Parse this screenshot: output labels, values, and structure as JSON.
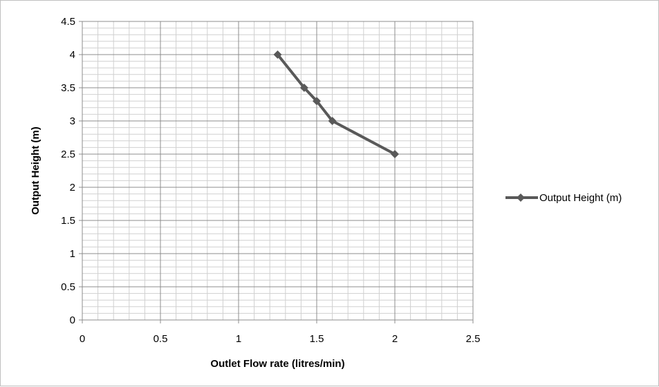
{
  "chart_data": {
    "type": "line",
    "title": "",
    "xlabel": "Outlet Flow rate (litres/min)",
    "ylabel": "Output Height (m)",
    "xlim": [
      0,
      2.5
    ],
    "ylim": [
      0,
      4.5
    ],
    "x_ticks": [
      "0",
      "0.5",
      "1",
      "1.5",
      "2",
      "2.5"
    ],
    "y_ticks": [
      "0",
      "0.5",
      "1",
      "1.5",
      "2",
      "2.5",
      "3",
      "3.5",
      "4",
      "4.5"
    ],
    "grid": true,
    "legend_position": "right",
    "series": [
      {
        "name": "Output Height (m)",
        "color": "#595959",
        "marker": "diamond",
        "points": [
          {
            "x": 1.25,
            "y": 4.0
          },
          {
            "x": 1.42,
            "y": 3.5
          },
          {
            "x": 1.5,
            "y": 3.3
          },
          {
            "x": 1.6,
            "y": 3.0
          },
          {
            "x": 2.0,
            "y": 2.5
          }
        ]
      }
    ]
  }
}
